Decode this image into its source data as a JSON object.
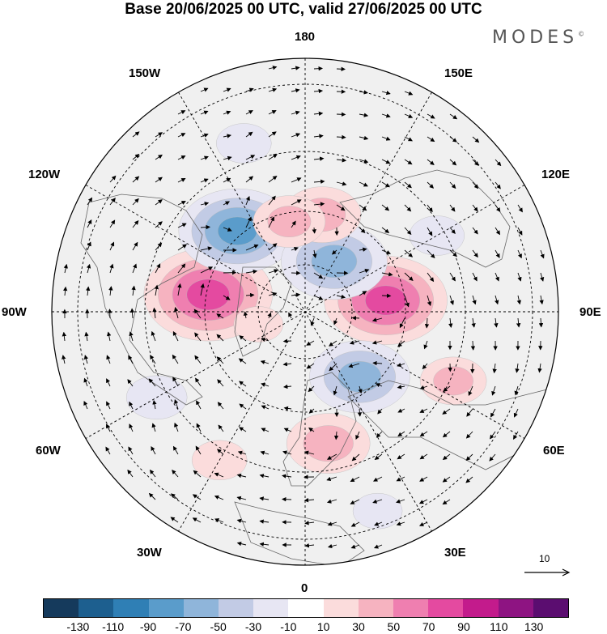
{
  "title": "Base 20/06/2025 00 UTC, valid 27/06/2025 00 UTC",
  "brand": "MODES",
  "brand_mark": "©",
  "longitude_labels": {
    "top": "180",
    "bottom": "0",
    "left": "90W",
    "right": "90E",
    "upper_left_1": "150W",
    "upper_left_2": "120W",
    "upper_right_1": "150E",
    "upper_right_2": "120E",
    "lower_left_1": "60W",
    "lower_left_2": "30W",
    "lower_right_1": "60E",
    "lower_right_2": "30E"
  },
  "reference_vector": {
    "value": "10"
  },
  "colorbar": {
    "colors": [
      "#153a5c",
      "#1d5f8f",
      "#2f7fb5",
      "#5a9ccb",
      "#8fb5da",
      "#c2cbe5",
      "#e7e6f3",
      "#ffffff",
      "#fbdcdc",
      "#f6b3c0",
      "#ef7fb0",
      "#e44aa0",
      "#c31b8c",
      "#8e1482",
      "#5b0d70"
    ],
    "ticks": [
      "-130",
      "-110",
      "-90",
      "-70",
      "-50",
      "-30",
      "-10",
      "10",
      "30",
      "50",
      "70",
      "90",
      "110",
      "130"
    ]
  },
  "map": {
    "projection": "north polar stereographic",
    "graticule": "dashed",
    "anomalies": [
      {
        "lon": -100,
        "lat": 60,
        "value": 85
      },
      {
        "lon": 98,
        "lat": 65,
        "value": 80
      },
      {
        "lon": -140,
        "lat": 58,
        "value": -75
      },
      {
        "lon": 150,
        "lat": 72,
        "value": -65
      },
      {
        "lon": 40,
        "lat": 64,
        "value": -60
      },
      {
        "lon": 10,
        "lat": 50,
        "value": 45
      },
      {
        "lon": 170,
        "lat": 60,
        "value": 40
      },
      {
        "lon": -170,
        "lat": 62,
        "value": 35
      },
      {
        "lon": 65,
        "lat": 42,
        "value": 30
      },
      {
        "lon": -60,
        "lat": 40,
        "value": -25
      },
      {
        "lon": -160,
        "lat": 38,
        "value": -20
      },
      {
        "lon": 120,
        "lat": 45,
        "value": -20
      },
      {
        "lon": -30,
        "lat": 40,
        "value": 20
      },
      {
        "lon": -75,
        "lat": 75,
        "value": 15
      },
      {
        "lon": 20,
        "lat": 30,
        "value": -15
      }
    ]
  }
}
